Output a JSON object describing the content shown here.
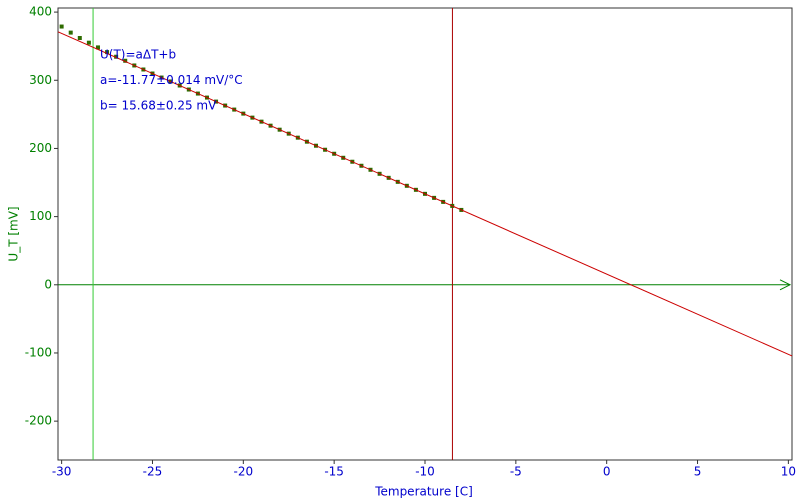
{
  "chart_data": {
    "type": "scatter",
    "x_label": "Temperature [C]",
    "y_label": "U_T [mV]",
    "annotations": [
      "U(T)=aΔT+b",
      "a=-11.77±0.014 mV/°C",
      "b= 15.68±0.25 mV"
    ],
    "x": [
      -30,
      -29.5,
      -29,
      -28.5,
      -28,
      -27.5,
      -27,
      -26.5,
      -26,
      -25.5,
      -25,
      -24.5,
      -24,
      -23.5,
      -23,
      -22.5,
      -22,
      -21.5,
      -21,
      -20.5,
      -20,
      -19.5,
      -19,
      -18.5,
      -18,
      -17.5,
      -17,
      -16.5,
      -16,
      -15.5,
      -15,
      -14.5,
      -14,
      -13.5,
      -13,
      -12.5,
      -12,
      -11.5,
      -11,
      -10.5,
      -10,
      -9.5,
      -9,
      -8.5,
      -8
    ],
    "values": [
      378.8,
      369.9,
      362.0,
      355.1,
      348.2,
      341.3,
      334.5,
      328.6,
      321.7,
      315.8,
      309.9,
      304.0,
      298.2,
      292.3,
      286.4,
      280.5,
      274.6,
      268.7,
      262.9,
      257.0,
      251.1,
      245.2,
      239.3,
      233.4,
      227.5,
      221.7,
      215.8,
      209.9,
      204.0,
      198.1,
      192.2,
      186.3,
      180.5,
      174.6,
      168.7,
      162.8,
      156.9,
      151.0,
      145.2,
      139.3,
      133.4,
      127.5,
      121.6,
      115.7,
      109.8
    ],
    "color": "#2e6b00",
    "fit": {
      "slope": -11.77,
      "intercept": 15.68,
      "color": "#cc0000"
    },
    "cursors": [
      {
        "x": -28.27,
        "color": "#33cc33"
      },
      {
        "x": -8.49,
        "color": "#aa0000"
      }
    ],
    "xlim": [
      -30.2,
      10.2
    ],
    "xticks": [
      -30,
      -25,
      -20,
      -15,
      -10,
      -5,
      0,
      5,
      10
    ],
    "ylim": [
      -257,
      406
    ],
    "yticks": [
      -200,
      -100,
      0,
      100,
      200,
      300,
      400
    ]
  }
}
